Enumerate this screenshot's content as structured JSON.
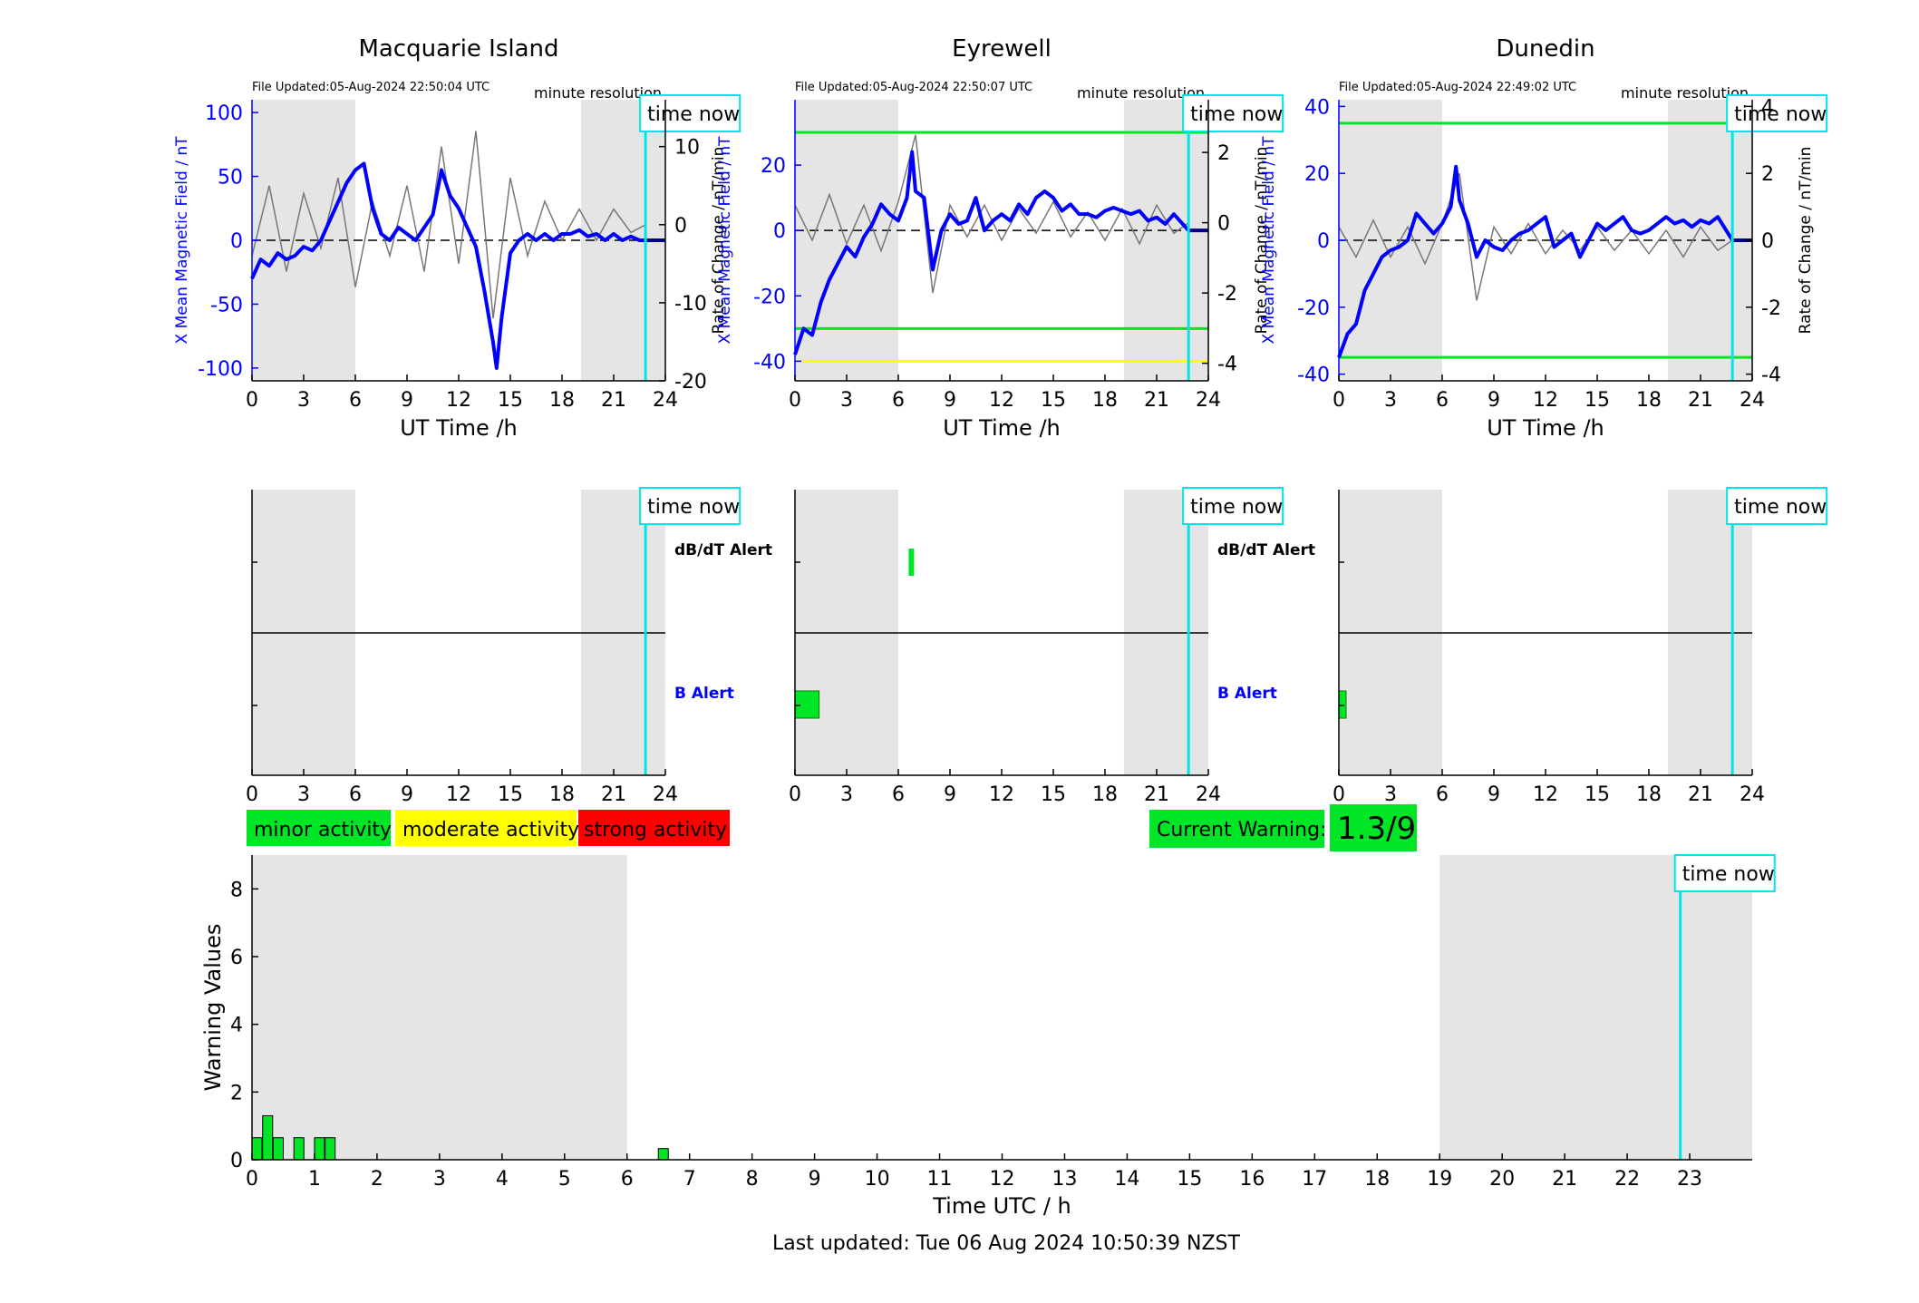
{
  "time_now_label": "time now",
  "minute_resolution": "minute resolution",
  "ut_xlabel": "UT Time /h",
  "left_ylabel": "X Mean Magnetic Field / nT",
  "right_ylabel": "Rate of Change / nT/min",
  "dbdt_alert": "dB/dT Alert",
  "b_alert": "B Alert",
  "legend": {
    "minor": "minor activity",
    "moderate": "moderate activity",
    "strong": "strong activity"
  },
  "current_warning": {
    "label": "Current Warning:",
    "value": "1.3/9"
  },
  "warning_chart": {
    "ylabel": "Warning Values",
    "xlabel": "Time UTC / h"
  },
  "footer": "Last updated: Tue 06 Aug 2024 10:50:39 NZST",
  "colors": {
    "minor": "#00e626",
    "moderate": "#ffff00",
    "strong": "#ff0000",
    "time_now": "#00e5e5",
    "field": "#0000ff",
    "night": "#e5e5e5"
  },
  "chart_data": [
    {
      "type": "line",
      "title": "Macquarie Island",
      "file_updated": "File Updated:05-Aug-2024 22:50:04 UTC",
      "xlim": [
        0,
        24
      ],
      "ylim": [
        -110,
        110
      ],
      "y2lim": [
        -20,
        16
      ],
      "yticks": [
        -100,
        -50,
        0,
        50,
        100
      ],
      "y2ticks": [
        -20,
        -10,
        0,
        10
      ],
      "thresholds": [],
      "night": [
        [
          0,
          6
        ],
        [
          19.1,
          24
        ]
      ],
      "time_now": 22.85,
      "series": [
        {
          "axis": "left",
          "x": [
            0,
            0.5,
            1,
            1.5,
            2,
            2.5,
            3,
            3.5,
            4,
            4.5,
            5,
            5.5,
            6,
            6.5,
            7,
            7.5,
            8,
            8.5,
            9,
            9.5,
            10,
            10.5,
            11,
            11.5,
            12,
            12.5,
            13,
            13.5,
            14,
            14.2,
            14.5,
            15,
            15.5,
            16,
            16.5,
            17,
            17.5,
            18,
            18.5,
            19,
            19.5,
            20,
            20.5,
            21,
            21.5,
            22,
            22.5,
            22.85
          ],
          "y": [
            -30,
            -15,
            -20,
            -10,
            -15,
            -12,
            -5,
            -8,
            0,
            15,
            30,
            45,
            55,
            60,
            25,
            5,
            0,
            10,
            5,
            0,
            10,
            20,
            55,
            35,
            25,
            10,
            -5,
            -40,
            -80,
            -100,
            -60,
            -10,
            0,
            5,
            0,
            5,
            0,
            5,
            5,
            8,
            3,
            5,
            0,
            5,
            0,
            3,
            0,
            0
          ]
        },
        {
          "axis": "right",
          "x": [
            0,
            1,
            2,
            3,
            4,
            5,
            6,
            7,
            8,
            9,
            10,
            11,
            12,
            13,
            14,
            15,
            16,
            17,
            18,
            19,
            20,
            21,
            22,
            22.85
          ],
          "y": [
            -4,
            5,
            -6,
            4,
            -3,
            6,
            -8,
            3,
            -4,
            5,
            -6,
            10,
            -5,
            12,
            -12,
            6,
            -4,
            3,
            -2,
            2,
            -2,
            2,
            -1,
            0
          ]
        }
      ]
    },
    {
      "type": "line",
      "title": "Eyrewell",
      "file_updated": "File Updated:05-Aug-2024 22:50:07 UTC",
      "xlim": [
        0,
        24
      ],
      "ylim": [
        -46,
        40
      ],
      "y2lim": [
        -4.5,
        3.5
      ],
      "yticks": [
        -40,
        -20,
        0,
        20
      ],
      "y2ticks": [
        -4,
        -2,
        0,
        2
      ],
      "thresholds": [
        {
          "y": 30,
          "color": "#00e626"
        },
        {
          "y": -30,
          "color": "#00e626"
        },
        {
          "y": -40,
          "color": "#ffff00"
        }
      ],
      "night": [
        [
          0,
          6
        ],
        [
          19.1,
          24
        ]
      ],
      "time_now": 22.85,
      "series": [
        {
          "axis": "left",
          "x": [
            0,
            0.5,
            1,
            1.5,
            2,
            2.5,
            3,
            3.5,
            4,
            4.5,
            5,
            5.5,
            6,
            6.5,
            6.8,
            7,
            7.5,
            8,
            8.5,
            9,
            9.5,
            10,
            10.5,
            11,
            11.5,
            12,
            12.5,
            13,
            13.5,
            14,
            14.5,
            15,
            15.5,
            16,
            16.5,
            17,
            17.5,
            18,
            18.5,
            19,
            19.5,
            20,
            20.5,
            21,
            21.5,
            22,
            22.85
          ],
          "y": [
            -38,
            -30,
            -32,
            -22,
            -15,
            -10,
            -5,
            -8,
            -2,
            2,
            8,
            5,
            3,
            10,
            24,
            12,
            10,
            -12,
            0,
            5,
            2,
            3,
            10,
            0,
            3,
            5,
            3,
            8,
            5,
            10,
            12,
            10,
            6,
            8,
            5,
            5,
            4,
            6,
            7,
            6,
            5,
            6,
            3,
            4,
            2,
            5,
            0
          ]
        },
        {
          "axis": "right",
          "x": [
            0,
            1,
            2,
            3,
            4,
            5,
            6,
            7,
            8,
            9,
            10,
            11,
            12,
            13,
            14,
            15,
            16,
            17,
            18,
            19,
            20,
            21,
            22,
            22.85
          ],
          "y": [
            0.5,
            -0.5,
            0.8,
            -0.6,
            0.5,
            -0.8,
            0.6,
            2.5,
            -2.0,
            0.5,
            -0.4,
            0.5,
            -0.5,
            0.4,
            -0.3,
            0.6,
            -0.4,
            0.3,
            -0.5,
            0.4,
            -0.6,
            0.5,
            -0.3,
            0
          ]
        }
      ]
    },
    {
      "type": "line",
      "title": "Dunedin",
      "file_updated": "File Updated:05-Aug-2024 22:49:02 UTC",
      "xlim": [
        0,
        24
      ],
      "ylim": [
        -42,
        42
      ],
      "y2lim": [
        -4.2,
        4.2
      ],
      "yticks": [
        -40,
        -20,
        0,
        20,
        40
      ],
      "y2ticks": [
        -4,
        -2,
        0,
        2,
        4
      ],
      "thresholds": [
        {
          "y": 35,
          "color": "#00e626"
        },
        {
          "y": -35,
          "color": "#00e626"
        }
      ],
      "night": [
        [
          0,
          6
        ],
        [
          19.1,
          24
        ]
      ],
      "time_now": 22.85,
      "series": [
        {
          "axis": "left",
          "x": [
            0,
            0.5,
            1,
            1.5,
            2,
            2.5,
            3,
            3.5,
            4,
            4.5,
            5,
            5.5,
            6,
            6.5,
            6.8,
            7,
            7.5,
            8,
            8.5,
            9,
            9.5,
            10,
            10.5,
            11,
            11.5,
            12,
            12.5,
            13,
            13.5,
            14,
            14.5,
            15,
            15.5,
            16,
            16.5,
            17,
            17.5,
            18,
            18.5,
            19,
            19.5,
            20,
            20.5,
            21,
            21.5,
            22,
            22.85
          ],
          "y": [
            -35,
            -28,
            -25,
            -15,
            -10,
            -5,
            -3,
            -2,
            0,
            8,
            5,
            2,
            5,
            10,
            22,
            12,
            5,
            -5,
            0,
            -2,
            -3,
            0,
            2,
            3,
            5,
            7,
            -2,
            0,
            2,
            -5,
            0,
            5,
            3,
            5,
            7,
            3,
            2,
            3,
            5,
            7,
            5,
            6,
            4,
            6,
            5,
            7,
            0
          ]
        },
        {
          "axis": "right",
          "x": [
            0,
            1,
            2,
            3,
            4,
            5,
            6,
            7,
            8,
            9,
            10,
            11,
            12,
            13,
            14,
            15,
            16,
            17,
            18,
            19,
            20,
            21,
            22,
            22.85
          ],
          "y": [
            0.4,
            -0.5,
            0.6,
            -0.5,
            0.4,
            -0.7,
            0.5,
            2.0,
            -1.8,
            0.4,
            -0.4,
            0.5,
            -0.4,
            0.3,
            -0.3,
            0.4,
            -0.3,
            0.3,
            -0.4,
            0.3,
            -0.5,
            0.4,
            -0.3,
            0
          ]
        }
      ]
    },
    {
      "type": "bar",
      "ylabel": "Warning Values",
      "xlabel": "Time UTC / h",
      "xlim": [
        0,
        24
      ],
      "ylim": [
        0,
        9
      ],
      "yticks": [
        0,
        2,
        4,
        6,
        8
      ],
      "xticks": [
        0,
        1,
        2,
        3,
        4,
        5,
        6,
        7,
        8,
        9,
        10,
        11,
        12,
        13,
        14,
        15,
        16,
        17,
        18,
        19,
        20,
        21,
        22,
        23
      ],
      "night": [
        [
          0,
          6
        ],
        [
          19,
          24
        ]
      ],
      "time_now": 22.85,
      "bars": [
        {
          "x": 0.08,
          "value": 0.65
        },
        {
          "x": 0.25,
          "value": 1.3
        },
        {
          "x": 0.42,
          "value": 0.65
        },
        {
          "x": 0.75,
          "value": 0.65
        },
        {
          "x": 1.08,
          "value": 0.65
        },
        {
          "x": 1.25,
          "value": 0.65
        },
        {
          "x": 6.58,
          "value": 0.33
        }
      ]
    }
  ],
  "alert_panels": [
    {
      "station": "Macquarie Island",
      "night": [
        [
          0,
          6
        ],
        [
          19.1,
          24
        ]
      ],
      "time_now": 22.85,
      "dbdt_alerts": [],
      "b_alerts": []
    },
    {
      "station": "Eyrewell",
      "night": [
        [
          0,
          6
        ],
        [
          19.1,
          24
        ]
      ],
      "time_now": 22.85,
      "dbdt_alerts": [
        {
          "start": 6.6,
          "end": 6.9
        }
      ],
      "b_alerts": [
        {
          "start": 0,
          "end": 1.4
        }
      ]
    },
    {
      "station": "Dunedin",
      "night": [
        [
          0,
          6
        ],
        [
          19.1,
          24
        ]
      ],
      "time_now": 22.85,
      "dbdt_alerts": [],
      "b_alerts": [
        {
          "start": 0,
          "end": 0.4
        }
      ]
    }
  ]
}
